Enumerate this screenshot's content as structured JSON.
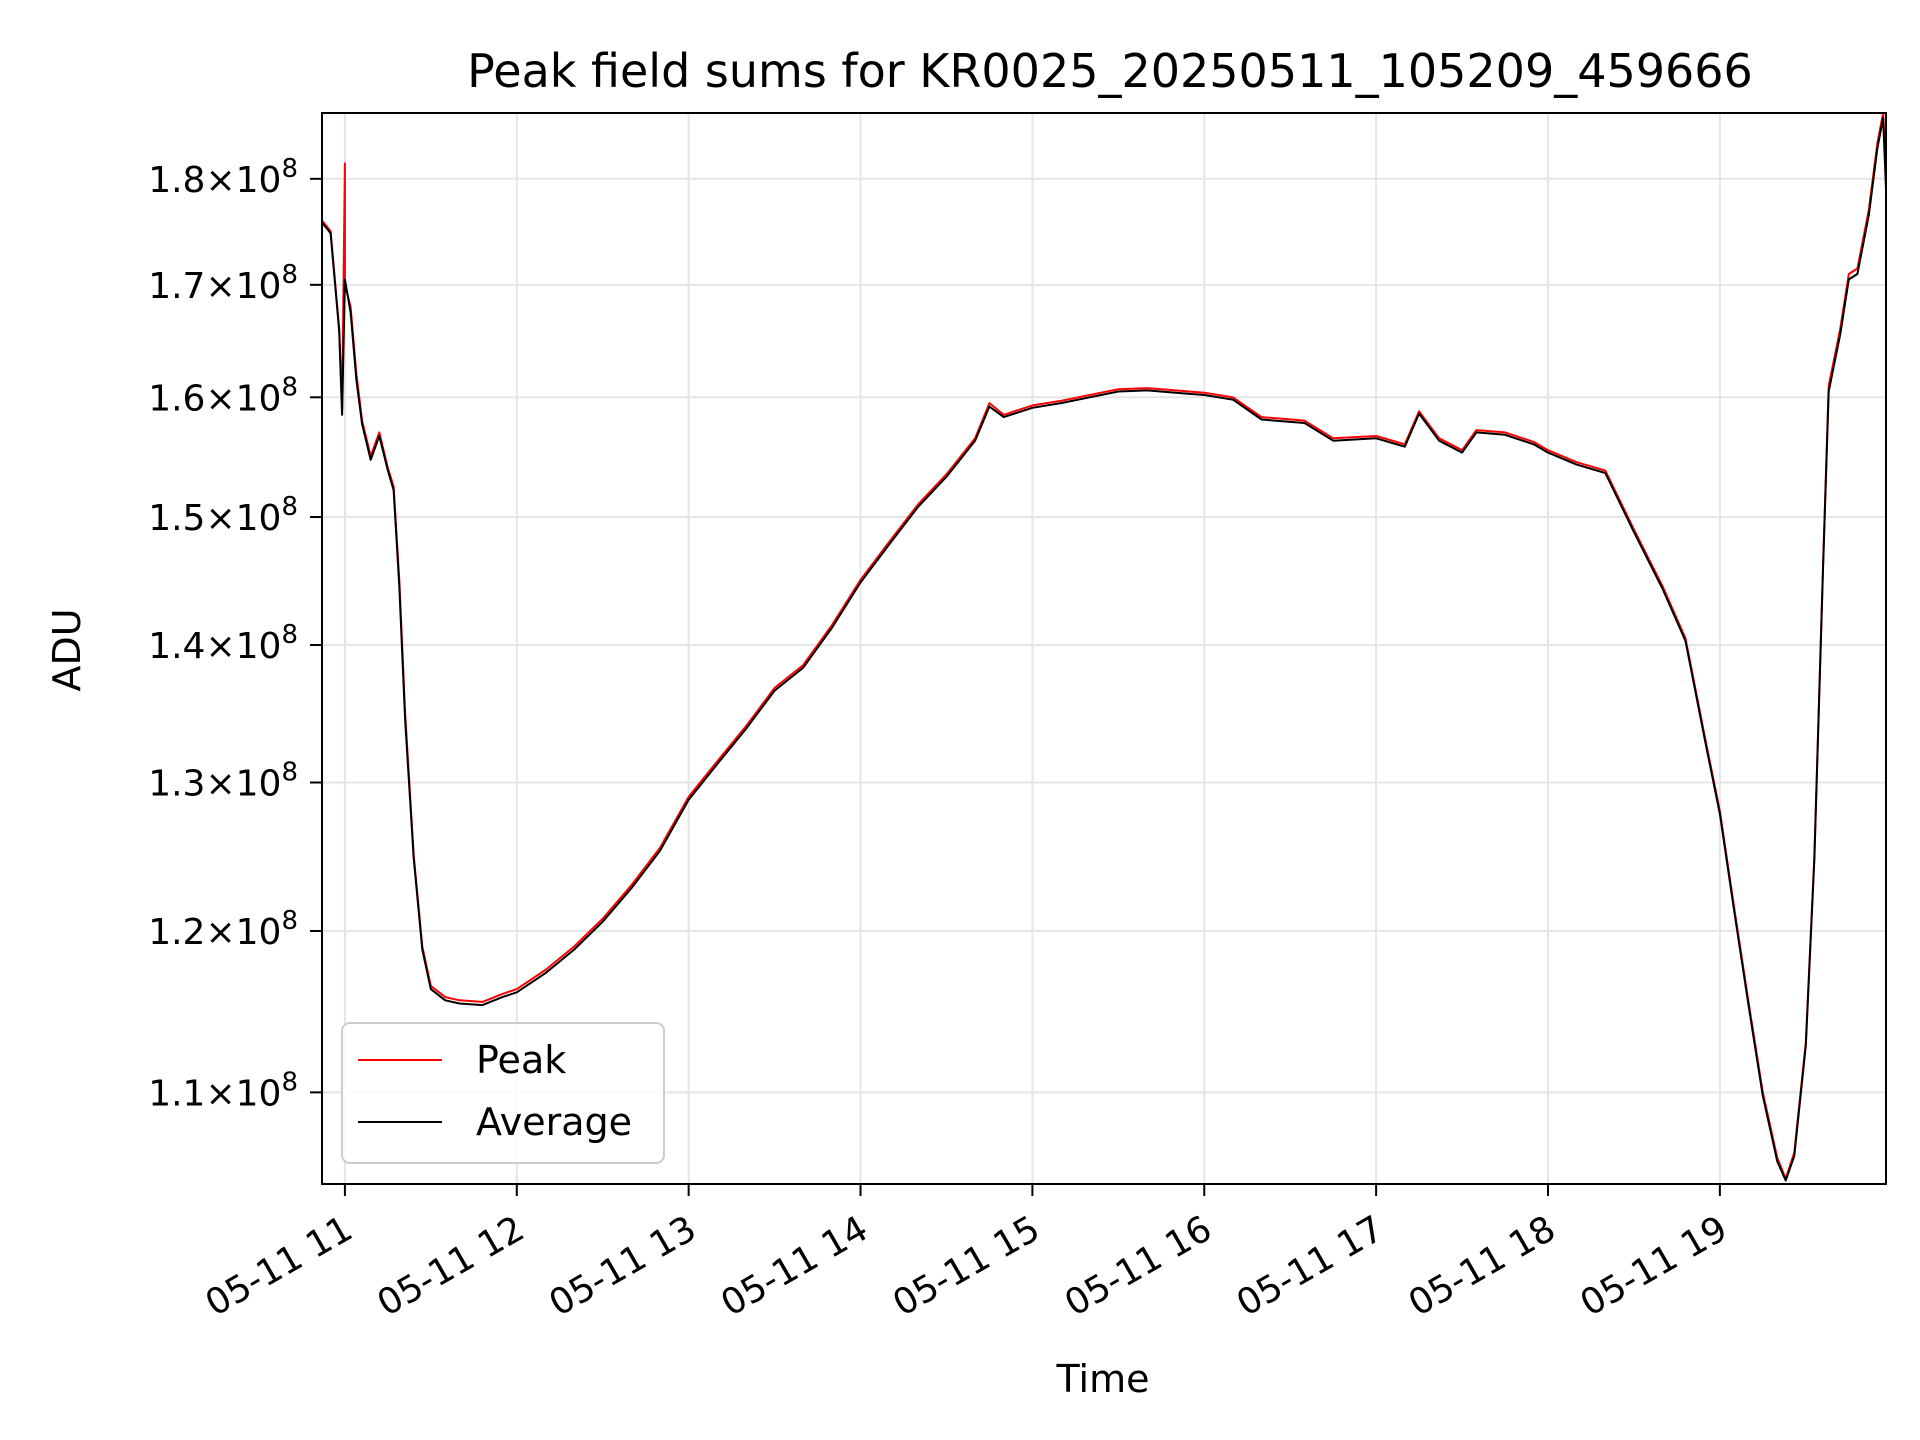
{
  "chart_data": {
    "type": "line",
    "title": "Peak field sums for KR0025_20250511_105209_459666",
    "xlabel": "Time",
    "ylabel": "ADU",
    "y_scale": "log",
    "grid": true,
    "legend_position": "lower-left",
    "xlim": [
      "2025-05-11 10:52",
      "2025-05-11 19:58"
    ],
    "ylim": [
      104700000,
      186500000
    ],
    "x_ticks": [
      {
        "time": "2025-05-11 11:00",
        "label": "05-11 11"
      },
      {
        "time": "2025-05-11 12:00",
        "label": "05-11 12"
      },
      {
        "time": "2025-05-11 13:00",
        "label": "05-11 13"
      },
      {
        "time": "2025-05-11 14:00",
        "label": "05-11 14"
      },
      {
        "time": "2025-05-11 15:00",
        "label": "05-11 15"
      },
      {
        "time": "2025-05-11 16:00",
        "label": "05-11 16"
      },
      {
        "time": "2025-05-11 17:00",
        "label": "05-11 17"
      },
      {
        "time": "2025-05-11 18:00",
        "label": "05-11 18"
      },
      {
        "time": "2025-05-11 19:00",
        "label": "05-11 19"
      }
    ],
    "y_ticks": [
      {
        "value": 110000000,
        "mantissa": "1.1",
        "exponent": "8"
      },
      {
        "value": 120000000,
        "mantissa": "1.2",
        "exponent": "8"
      },
      {
        "value": 130000000,
        "mantissa": "1.3",
        "exponent": "8"
      },
      {
        "value": 140000000,
        "mantissa": "1.4",
        "exponent": "8"
      },
      {
        "value": 150000000,
        "mantissa": "1.5",
        "exponent": "8"
      },
      {
        "value": 160000000,
        "mantissa": "1.6",
        "exponent": "8"
      },
      {
        "value": 170000000,
        "mantissa": "1.7",
        "exponent": "8"
      },
      {
        "value": 180000000,
        "mantissa": "1.8",
        "exponent": "8"
      }
    ],
    "series": [
      {
        "name": "Peak",
        "color": "#ff0000",
        "points": [
          [
            "2025-05-11 10:52",
            176000000
          ],
          [
            "2025-05-11 10:55",
            175000000
          ],
          [
            "2025-05-11 10:58",
            166000000
          ],
          [
            "2025-05-11 10:59",
            159000000
          ],
          [
            "2025-05-11 11:00",
            181500000
          ],
          [
            "2025-05-11 11:00",
            170000000
          ],
          [
            "2025-05-11 11:02",
            168000000
          ],
          [
            "2025-05-11 11:04",
            162000000
          ],
          [
            "2025-05-11 11:06",
            158000000
          ],
          [
            "2025-05-11 11:09",
            155000000
          ],
          [
            "2025-05-11 11:12",
            157000000
          ],
          [
            "2025-05-11 11:15",
            154000000
          ],
          [
            "2025-05-11 11:17",
            152500000
          ],
          [
            "2025-05-11 11:19",
            145000000
          ],
          [
            "2025-05-11 11:21",
            135000000
          ],
          [
            "2025-05-11 11:24",
            125000000
          ],
          [
            "2025-05-11 11:27",
            119000000
          ],
          [
            "2025-05-11 11:30",
            116500000
          ],
          [
            "2025-05-11 11:35",
            115800000
          ],
          [
            "2025-05-11 11:40",
            115600000
          ],
          [
            "2025-05-11 11:48",
            115500000
          ],
          [
            "2025-05-11 11:55",
            116000000
          ],
          [
            "2025-05-11 12:00",
            116300000
          ],
          [
            "2025-05-11 12:10",
            117500000
          ],
          [
            "2025-05-11 12:20",
            119000000
          ],
          [
            "2025-05-11 12:30",
            120800000
          ],
          [
            "2025-05-11 12:40",
            123000000
          ],
          [
            "2025-05-11 12:50",
            125500000
          ],
          [
            "2025-05-11 13:00",
            129000000
          ],
          [
            "2025-05-11 13:10",
            131500000
          ],
          [
            "2025-05-11 13:20",
            134000000
          ],
          [
            "2025-05-11 13:30",
            136800000
          ],
          [
            "2025-05-11 13:40",
            138500000
          ],
          [
            "2025-05-11 13:50",
            141500000
          ],
          [
            "2025-05-11 14:00",
            145000000
          ],
          [
            "2025-05-11 14:10",
            148000000
          ],
          [
            "2025-05-11 14:20",
            151000000
          ],
          [
            "2025-05-11 14:30",
            153500000
          ],
          [
            "2025-05-11 14:40",
            156500000
          ],
          [
            "2025-05-11 14:45",
            159500000
          ],
          [
            "2025-05-11 14:50",
            158500000
          ],
          [
            "2025-05-11 15:00",
            159300000
          ],
          [
            "2025-05-11 15:10",
            159700000
          ],
          [
            "2025-05-11 15:20",
            160200000
          ],
          [
            "2025-05-11 15:30",
            160700000
          ],
          [
            "2025-05-11 15:40",
            160800000
          ],
          [
            "2025-05-11 15:50",
            160600000
          ],
          [
            "2025-05-11 16:00",
            160400000
          ],
          [
            "2025-05-11 16:10",
            160000000
          ],
          [
            "2025-05-11 16:20",
            158300000
          ],
          [
            "2025-05-11 16:35",
            158000000
          ],
          [
            "2025-05-11 16:45",
            156500000
          ],
          [
            "2025-05-11 17:00",
            156700000
          ],
          [
            "2025-05-11 17:10",
            156000000
          ],
          [
            "2025-05-11 17:15",
            158800000
          ],
          [
            "2025-05-11 17:22",
            156500000
          ],
          [
            "2025-05-11 17:30",
            155500000
          ],
          [
            "2025-05-11 17:35",
            157200000
          ],
          [
            "2025-05-11 17:45",
            157000000
          ],
          [
            "2025-05-11 17:55",
            156200000
          ],
          [
            "2025-05-11 18:00",
            155500000
          ],
          [
            "2025-05-11 18:10",
            154500000
          ],
          [
            "2025-05-11 18:20",
            153800000
          ],
          [
            "2025-05-11 18:30",
            149000000
          ],
          [
            "2025-05-11 18:40",
            144500000
          ],
          [
            "2025-05-11 18:48",
            140500000
          ],
          [
            "2025-05-11 18:55",
            133000000
          ],
          [
            "2025-05-11 19:00",
            128000000
          ],
          [
            "2025-05-11 19:05",
            121500000
          ],
          [
            "2025-05-11 19:10",
            115500000
          ],
          [
            "2025-05-11 19:15",
            110000000
          ],
          [
            "2025-05-11 19:20",
            106200000
          ],
          [
            "2025-05-11 19:23",
            105000000
          ],
          [
            "2025-05-11 19:26",
            106500000
          ],
          [
            "2025-05-11 19:30",
            113000000
          ],
          [
            "2025-05-11 19:33",
            125000000
          ],
          [
            "2025-05-11 19:36",
            146000000
          ],
          [
            "2025-05-11 19:38",
            161000000
          ],
          [
            "2025-05-11 19:42",
            166000000
          ],
          [
            "2025-05-11 19:45",
            171000000
          ],
          [
            "2025-05-11 19:48",
            171500000
          ],
          [
            "2025-05-11 19:52",
            177000000
          ],
          [
            "2025-05-11 19:55",
            183500000
          ],
          [
            "2025-05-11 19:57",
            186500000
          ],
          [
            "2025-05-11 19:58",
            181000000
          ]
        ]
      },
      {
        "name": "Average",
        "color": "#000000",
        "points": [
          [
            "2025-05-11 10:52",
            175800000
          ],
          [
            "2025-05-11 10:55",
            174800000
          ],
          [
            "2025-05-11 10:58",
            165800000
          ],
          [
            "2025-05-11 10:59",
            158500000
          ],
          [
            "2025-05-11 11:00",
            170500000
          ],
          [
            "2025-05-11 11:02",
            167500000
          ],
          [
            "2025-05-11 11:04",
            161500000
          ],
          [
            "2025-05-11 11:06",
            157700000
          ],
          [
            "2025-05-11 11:09",
            154700000
          ],
          [
            "2025-05-11 11:12",
            156700000
          ],
          [
            "2025-05-11 11:15",
            153800000
          ],
          [
            "2025-05-11 11:17",
            152200000
          ],
          [
            "2025-05-11 11:19",
            144500000
          ],
          [
            "2025-05-11 11:21",
            134500000
          ],
          [
            "2025-05-11 11:24",
            124800000
          ],
          [
            "2025-05-11 11:27",
            118800000
          ],
          [
            "2025-05-11 11:30",
            116300000
          ],
          [
            "2025-05-11 11:35",
            115600000
          ],
          [
            "2025-05-11 11:40",
            115400000
          ],
          [
            "2025-05-11 11:48",
            115300000
          ],
          [
            "2025-05-11 11:55",
            115800000
          ],
          [
            "2025-05-11 12:00",
            116100000
          ],
          [
            "2025-05-11 12:10",
            117300000
          ],
          [
            "2025-05-11 12:20",
            118800000
          ],
          [
            "2025-05-11 12:30",
            120600000
          ],
          [
            "2025-05-11 12:40",
            122800000
          ],
          [
            "2025-05-11 12:50",
            125300000
          ],
          [
            "2025-05-11 13:00",
            128800000
          ],
          [
            "2025-05-11 13:10",
            131300000
          ],
          [
            "2025-05-11 13:20",
            133800000
          ],
          [
            "2025-05-11 13:30",
            136600000
          ],
          [
            "2025-05-11 13:40",
            138300000
          ],
          [
            "2025-05-11 13:50",
            141300000
          ],
          [
            "2025-05-11 14:00",
            144800000
          ],
          [
            "2025-05-11 14:10",
            147800000
          ],
          [
            "2025-05-11 14:20",
            150800000
          ],
          [
            "2025-05-11 14:30",
            153300000
          ],
          [
            "2025-05-11 14:40",
            156300000
          ],
          [
            "2025-05-11 14:45",
            159200000
          ],
          [
            "2025-05-11 14:50",
            158300000
          ],
          [
            "2025-05-11 15:00",
            159100000
          ],
          [
            "2025-05-11 15:10",
            159500000
          ],
          [
            "2025-05-11 15:20",
            160000000
          ],
          [
            "2025-05-11 15:30",
            160500000
          ],
          [
            "2025-05-11 15:40",
            160600000
          ],
          [
            "2025-05-11 15:50",
            160400000
          ],
          [
            "2025-05-11 16:00",
            160200000
          ],
          [
            "2025-05-11 16:10",
            159800000
          ],
          [
            "2025-05-11 16:20",
            158100000
          ],
          [
            "2025-05-11 16:35",
            157800000
          ],
          [
            "2025-05-11 16:45",
            156300000
          ],
          [
            "2025-05-11 17:00",
            156500000
          ],
          [
            "2025-05-11 17:10",
            155800000
          ],
          [
            "2025-05-11 17:15",
            158600000
          ],
          [
            "2025-05-11 17:22",
            156300000
          ],
          [
            "2025-05-11 17:30",
            155300000
          ],
          [
            "2025-05-11 17:35",
            157000000
          ],
          [
            "2025-05-11 17:45",
            156800000
          ],
          [
            "2025-05-11 17:55",
            156000000
          ],
          [
            "2025-05-11 18:00",
            155300000
          ],
          [
            "2025-05-11 18:10",
            154300000
          ],
          [
            "2025-05-11 18:20",
            153600000
          ],
          [
            "2025-05-11 18:30",
            148800000
          ],
          [
            "2025-05-11 18:40",
            144300000
          ],
          [
            "2025-05-11 18:48",
            140300000
          ],
          [
            "2025-05-11 18:55",
            132800000
          ],
          [
            "2025-05-11 19:00",
            127800000
          ],
          [
            "2025-05-11 19:05",
            121300000
          ],
          [
            "2025-05-11 19:10",
            115300000
          ],
          [
            "2025-05-11 19:15",
            109800000
          ],
          [
            "2025-05-11 19:20",
            106000000
          ],
          [
            "2025-05-11 19:23",
            104900000
          ],
          [
            "2025-05-11 19:26",
            106300000
          ],
          [
            "2025-05-11 19:30",
            112800000
          ],
          [
            "2025-05-11 19:33",
            124800000
          ],
          [
            "2025-05-11 19:36",
            145800000
          ],
          [
            "2025-05-11 19:38",
            160500000
          ],
          [
            "2025-05-11 19:42",
            165500000
          ],
          [
            "2025-05-11 19:45",
            170500000
          ],
          [
            "2025-05-11 19:48",
            171000000
          ],
          [
            "2025-05-11 19:52",
            176500000
          ],
          [
            "2025-05-11 19:55",
            183000000
          ],
          [
            "2025-05-11 19:57",
            186000000
          ],
          [
            "2025-05-11 19:58",
            179000000
          ]
        ]
      }
    ]
  }
}
